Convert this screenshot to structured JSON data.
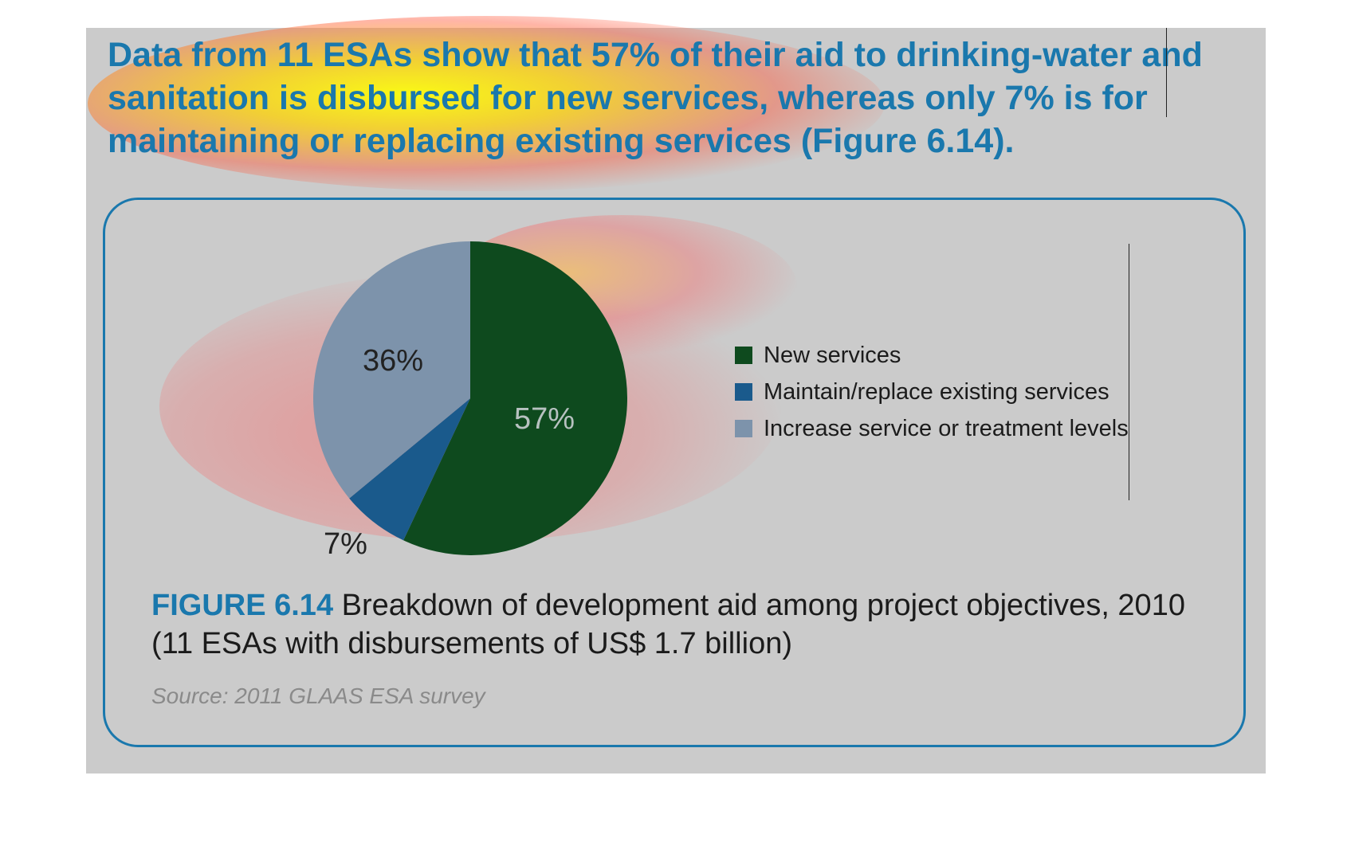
{
  "headline": "Data from 11 ESAs show that 57% of their aid to drinking-water and sanitation is disbursed for new services, whereas only 7% is for maintaining or replacing existing services (Figure 6.14).",
  "caption": {
    "figure_number": "FIGURE 6.14",
    "text": "Breakdown of development aid among project objectives, 2010 (11 ESAs with disbursements of US$ 1.7 billion)"
  },
  "source": "Source: 2011 GLAAS ESA survey",
  "chart_data": {
    "type": "pie",
    "categories": [
      "New services",
      "Maintain/replace existing services",
      "Increase service or treatment levels"
    ],
    "values": [
      57,
      7,
      36
    ],
    "value_labels": [
      "57%",
      "7%",
      "36%"
    ],
    "colors": [
      "#0e4a1e",
      "#1a5a8c",
      "#7d93ab"
    ],
    "legend_position": "right"
  }
}
